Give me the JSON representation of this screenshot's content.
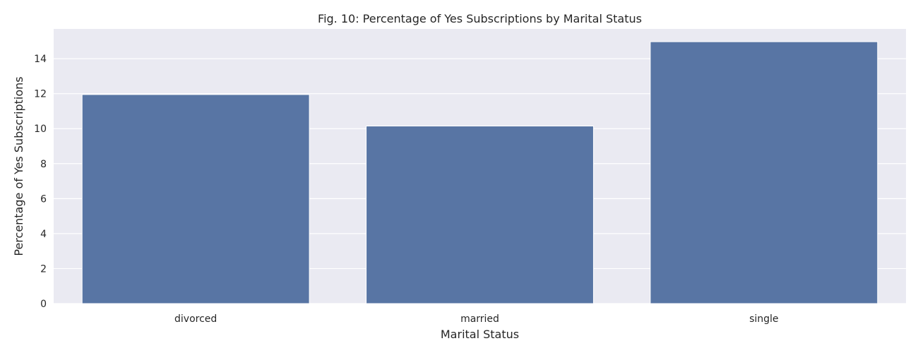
{
  "chart_data": {
    "type": "bar",
    "title": "Fig. 10: Percentage of Yes Subscriptions by Marital Status",
    "xlabel": "Marital Status",
    "ylabel": "Percentage of Yes Subscriptions",
    "categories": [
      "divorced",
      "married",
      "single"
    ],
    "values": [
      11.95,
      10.15,
      14.97
    ],
    "ylim": [
      0,
      15.7
    ],
    "yticks": [
      0,
      2,
      4,
      6,
      8,
      10,
      12,
      14
    ],
    "grid": true,
    "bar_color": "#5875a4",
    "background_color": "#eaeaf2",
    "grid_color": "#ffffff"
  }
}
